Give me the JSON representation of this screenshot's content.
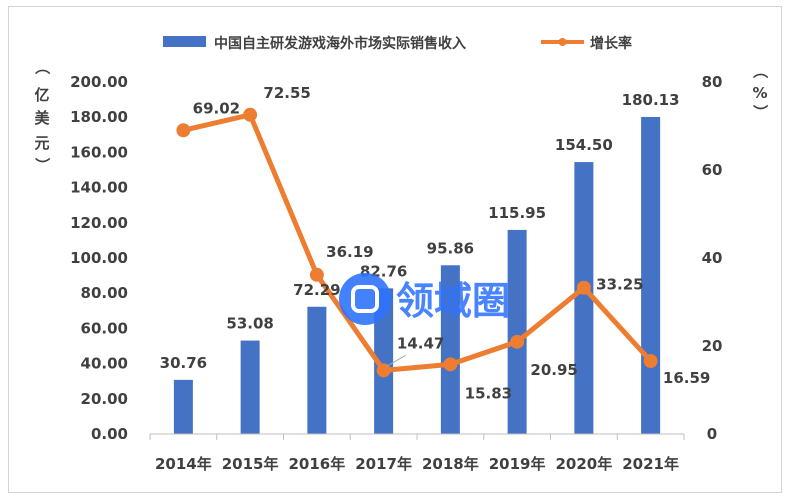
{
  "chart_data": {
    "type": "bar+line",
    "categories": [
      "2014年",
      "2015年",
      "2016年",
      "2017年",
      "2018年",
      "2019年",
      "2020年",
      "2021年"
    ],
    "series": [
      {
        "name": "中国自主研发游戏海外市场实际销售收入",
        "type": "bar",
        "axis": "left",
        "color": "#4472c4",
        "values": [
          30.76,
          53.08,
          72.29,
          82.76,
          95.86,
          115.95,
          154.5,
          180.13
        ],
        "labels": [
          "30.76",
          "53.08",
          "72.29",
          "82.76",
          "95.86",
          "115.95",
          "154.50",
          "180.13"
        ]
      },
      {
        "name": "增长率",
        "type": "line",
        "axis": "right",
        "color": "#ed7d31",
        "values": [
          69.02,
          72.55,
          36.19,
          14.47,
          15.83,
          20.95,
          33.25,
          16.59
        ],
        "labels": [
          "69.02",
          "72.55",
          "36.19",
          "14.47",
          "15.83",
          "20.95",
          "33.25",
          "16.59"
        ]
      }
    ],
    "y_left": {
      "label": "（亿美元）",
      "label_chars": [
        "（",
        "亿",
        "美",
        "元",
        "）"
      ],
      "ylim": [
        0,
        200
      ],
      "ticks": [
        "0.00",
        "20.00",
        "40.00",
        "60.00",
        "80.00",
        "100.00",
        "120.00",
        "140.00",
        "160.00",
        "180.00",
        "200.00"
      ]
    },
    "y_right": {
      "label": "（%）",
      "label_chars": [
        "（",
        "%",
        "）"
      ],
      "ylim": [
        0,
        80
      ],
      "ticks": [
        "0",
        "20",
        "40",
        "60",
        "80"
      ]
    },
    "grid": false,
    "legend": "top-center"
  },
  "watermark": {
    "text": "领域圈",
    "color": "#2f73ff"
  }
}
